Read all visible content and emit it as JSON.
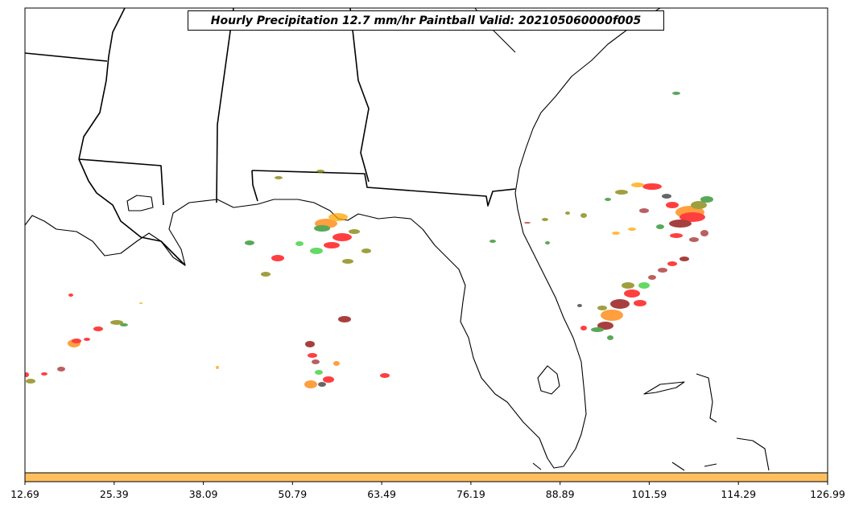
{
  "title": "Hourly Precipitation 12.7 mm/hr Paintball Valid: 202105060000f005",
  "colorbar": {
    "color": "#ffbf5f",
    "ticks": [
      "12.69",
      "25.39",
      "38.09",
      "50.79",
      "63.49",
      "76.19",
      "88.89",
      "101.59",
      "114.29",
      "126.99"
    ]
  },
  "map": {
    "coastline_color": "#000000",
    "background": "#ffffff",
    "paintball_colors": [
      "#ff0000",
      "#ff7f00",
      "#ffa500",
      "#808000",
      "#228b22",
      "#32cd32",
      "#8b0000",
      "#a52a2a"
    ]
  }
}
